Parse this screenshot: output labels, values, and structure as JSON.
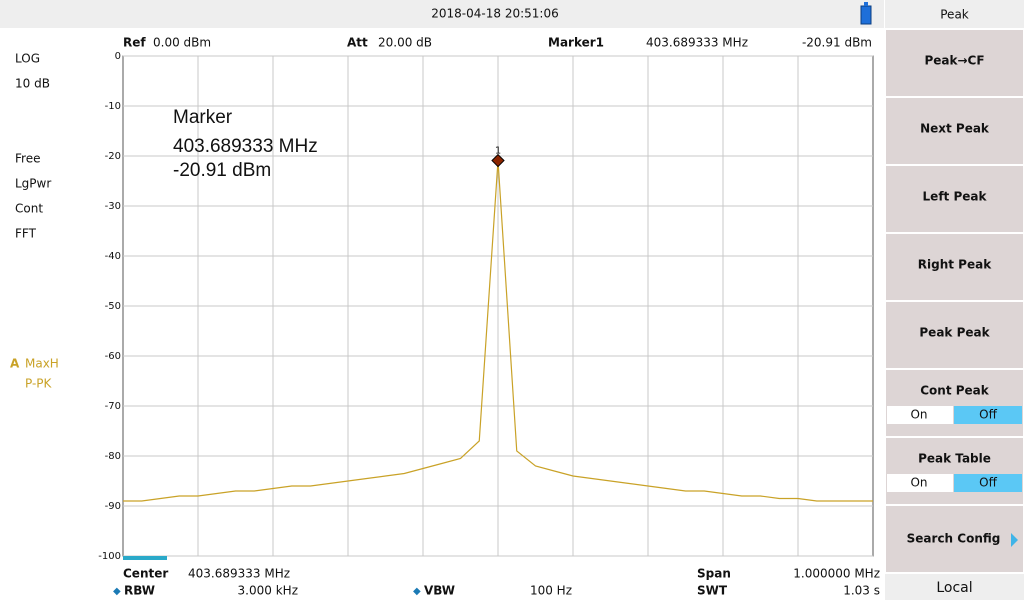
{
  "status_bar": {
    "datetime": "2018-04-18  20:51:06"
  },
  "left_panel": {
    "scale": "LOG",
    "scale_div": "10 dB",
    "modes": [
      "Free",
      "LgPwr",
      "Cont",
      "FFT"
    ],
    "trace_id": "A",
    "trace_mode": "MaxH",
    "detector": "P-PK"
  },
  "header": {
    "ref_label": "Ref",
    "ref_value": "0.00 dBm",
    "att_label": "Att",
    "att_value": "20.00 dB",
    "marker_label": "Marker1",
    "marker_freq": "403.689333 MHz",
    "marker_level": "-20.91 dBm"
  },
  "footer": {
    "center_label": "Center",
    "center_value": "403.689333 MHz",
    "span_label": "Span",
    "span_value": "1.000000 MHz",
    "rbw_label": "RBW",
    "rbw_value": "3.000 kHz",
    "vbw_label": "VBW",
    "vbw_value": "100 Hz",
    "swt_label": "SWT",
    "swt_value": "1.03 s"
  },
  "chart_data": {
    "type": "line",
    "color": "#c9a227",
    "annotation": [
      "Marker",
      "403.689333 MHz",
      "-20.91 dBm"
    ],
    "marker": {
      "label": "1",
      "x": 403.689333,
      "y": -20.91
    },
    "x": [
      403.189333,
      403.214333,
      403.239333,
      403.264333,
      403.289333,
      403.314333,
      403.339333,
      403.364333,
      403.389333,
      403.414333,
      403.439333,
      403.464333,
      403.489333,
      403.514333,
      403.539333,
      403.564333,
      403.589333,
      403.614333,
      403.639333,
      403.664333,
      403.689333,
      403.714333,
      403.739333,
      403.764333,
      403.789333,
      403.814333,
      403.839333,
      403.864333,
      403.889333,
      403.914333,
      403.939333,
      403.964333,
      403.989333,
      404.014333,
      404.039333,
      404.064333,
      404.089333,
      404.114333,
      404.139333,
      404.164333,
      404.189333
    ],
    "values": [
      -89,
      -89,
      -88.5,
      -88,
      -88,
      -87.5,
      -87,
      -87,
      -86.5,
      -86,
      -86,
      -85.5,
      -85,
      -84.5,
      -84,
      -83.5,
      -82.5,
      -81.5,
      -80.5,
      -77,
      -20.91,
      -79,
      -82,
      -83,
      -84,
      -84.5,
      -85,
      -85.5,
      -86,
      -86.5,
      -87,
      -87,
      -87.5,
      -88,
      -88,
      -88.5,
      -88.5,
      -89,
      -89,
      -89,
      -89
    ],
    "xlim": [
      403.189333,
      404.189333
    ],
    "ylim": [
      -100,
      0
    ],
    "yticks": [
      0,
      -10,
      -20,
      -30,
      -40,
      -50,
      -60,
      -70,
      -80,
      -90,
      -100
    ],
    "grid": true
  },
  "menu": {
    "title": "Peak",
    "items": [
      "Peak→CF",
      "Next Peak",
      "Left Peak",
      "Right Peak",
      "Peak Peak"
    ],
    "toggles": [
      {
        "label": "Cont Peak",
        "on": "On",
        "off": "Off"
      },
      {
        "label": "Peak Table",
        "on": "On",
        "off": "Off"
      }
    ],
    "config": "Search Config",
    "local": "Local"
  }
}
